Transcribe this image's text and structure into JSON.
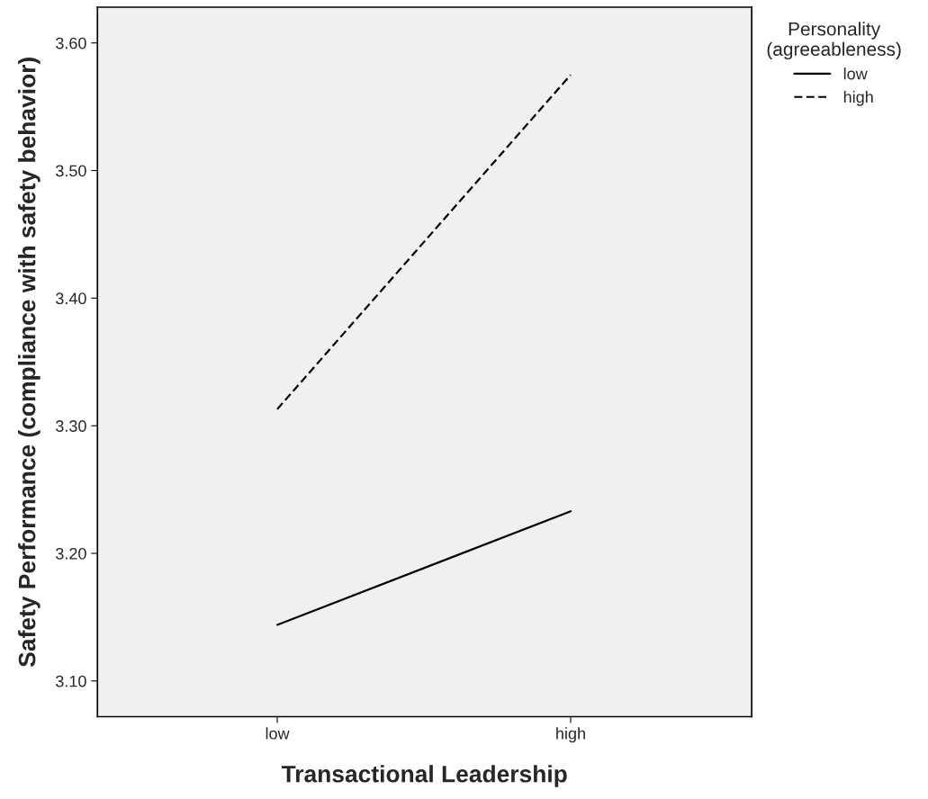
{
  "chart_data": {
    "type": "line",
    "xlabel": "Transactional Leadership",
    "ylabel": "Safety Performance (compliance with safety behavior)",
    "legend_title": "Personality\n(agreeableness)",
    "categories": [
      "low",
      "high"
    ],
    "series": [
      {
        "name": "low",
        "color": "#000000",
        "values": [
          3.144,
          3.233
        ],
        "line_style": "solid"
      },
      {
        "name": "high",
        "color": "#000000",
        "values": [
          3.313,
          3.575
        ],
        "line_style": "dashed"
      }
    ],
    "ylim": [
      3.072,
      3.628
    ],
    "yticks": [
      {
        "value": 3.1,
        "label": "3.10"
      },
      {
        "value": 3.2,
        "label": "3.20"
      },
      {
        "value": 3.3,
        "label": "3.30"
      },
      {
        "value": 3.4,
        "label": "3.40"
      },
      {
        "value": 3.5,
        "label": "3.50"
      },
      {
        "value": 3.6,
        "label": "3.60"
      }
    ],
    "grid": false,
    "legend": "top right",
    "marker": "none"
  }
}
